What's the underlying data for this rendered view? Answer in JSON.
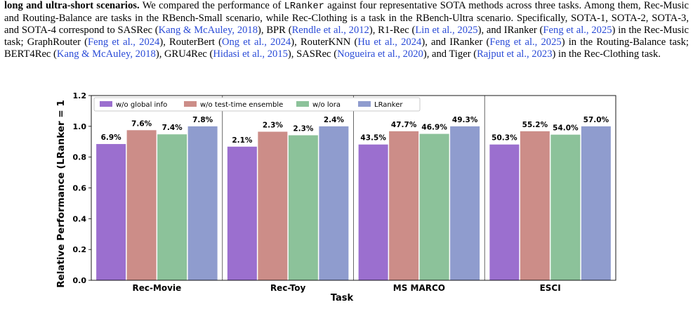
{
  "paragraph": {
    "lead_bold": "long and ultra-short scenarios.",
    "s1a": " We compared the performance of ",
    "code": "LRanker",
    "s1b": " against four representative SOTA methods across three tasks. Among them, Rec-Music and Routing-Balance are tasks in the RBench-Small scenario, while Rec-Clothing is a task in the RBench-Ultra scenario. Specifically, SOTA-1, SOTA-2, SOTA-3, and SOTA-4 correspond to SASRec (",
    "c1": "Kang & McAuley, 2018",
    "t1": "), BPR (",
    "c2": "Rendle et al., 2012",
    "t2": "), R1-Rec (",
    "c3": "Lin et al., 2025",
    "t3": "), and IRanker (",
    "c4": "Feng et al., 2025",
    "t4": ") in the Rec-Music task; GraphRouter (",
    "c5": "Feng et al., 2024",
    "t5": "), RouterBert (",
    "c6": "Ong et al., 2024",
    "t6": "), RouterKNN (",
    "c7": "Hu et al., 2024",
    "t7": "), and IRanker (",
    "c8": "Feng et al., 2025",
    "t8": ") in the Routing-Balance task; BERT4Rec (",
    "c9": "Kang & McAuley, 2018",
    "t9": "), GRU4Rec (",
    "c10": "Hidasi et al., 2015",
    "t10": "), SASRec (",
    "c11": "Nogueira et al., 2020",
    "t11": "), and Tiger (",
    "c12": "Rajput et al., 2023",
    "t12": ") in the Rec-Clothing task."
  },
  "colors": {
    "citation": "#2a4bd7",
    "series": [
      "#9b6fcf",
      "#cc8d88",
      "#8cc29a",
      "#8f9cce"
    ]
  },
  "chart_data": {
    "type": "bar",
    "xlabel": "Task",
    "ylabel": "Relative Performance (LRanker = 1",
    "ylim": [
      0,
      1.2
    ],
    "yticks": [
      "0.0",
      "0.2",
      "0.4",
      "0.6",
      "0.8",
      "1.0",
      "1.2"
    ],
    "categories": [
      "Rec-Movie",
      "Rec-Toy",
      "MS MARCO",
      "ESCI"
    ],
    "legend_position": "top-left",
    "grid": false,
    "series": [
      {
        "name": "w/o global info",
        "values": [
          0.885,
          0.868,
          0.882,
          0.882
        ],
        "labels": [
          "6.9%",
          "2.1%",
          "43.5%",
          "50.3%"
        ]
      },
      {
        "name": "w/o test-time ensemble",
        "values": [
          0.975,
          0.965,
          0.968,
          0.968
        ],
        "labels": [
          "7.6%",
          "2.3%",
          "47.7%",
          "55.2%"
        ]
      },
      {
        "name": "w/o lora",
        "values": [
          0.948,
          0.942,
          0.951,
          0.946
        ],
        "labels": [
          "7.4%",
          "2.3%",
          "46.9%",
          "54.0%"
        ]
      },
      {
        "name": "LRanker",
        "values": [
          1.0,
          1.0,
          1.0,
          1.0
        ],
        "labels": [
          "7.8%",
          "2.4%",
          "49.3%",
          "57.0%"
        ]
      }
    ]
  }
}
